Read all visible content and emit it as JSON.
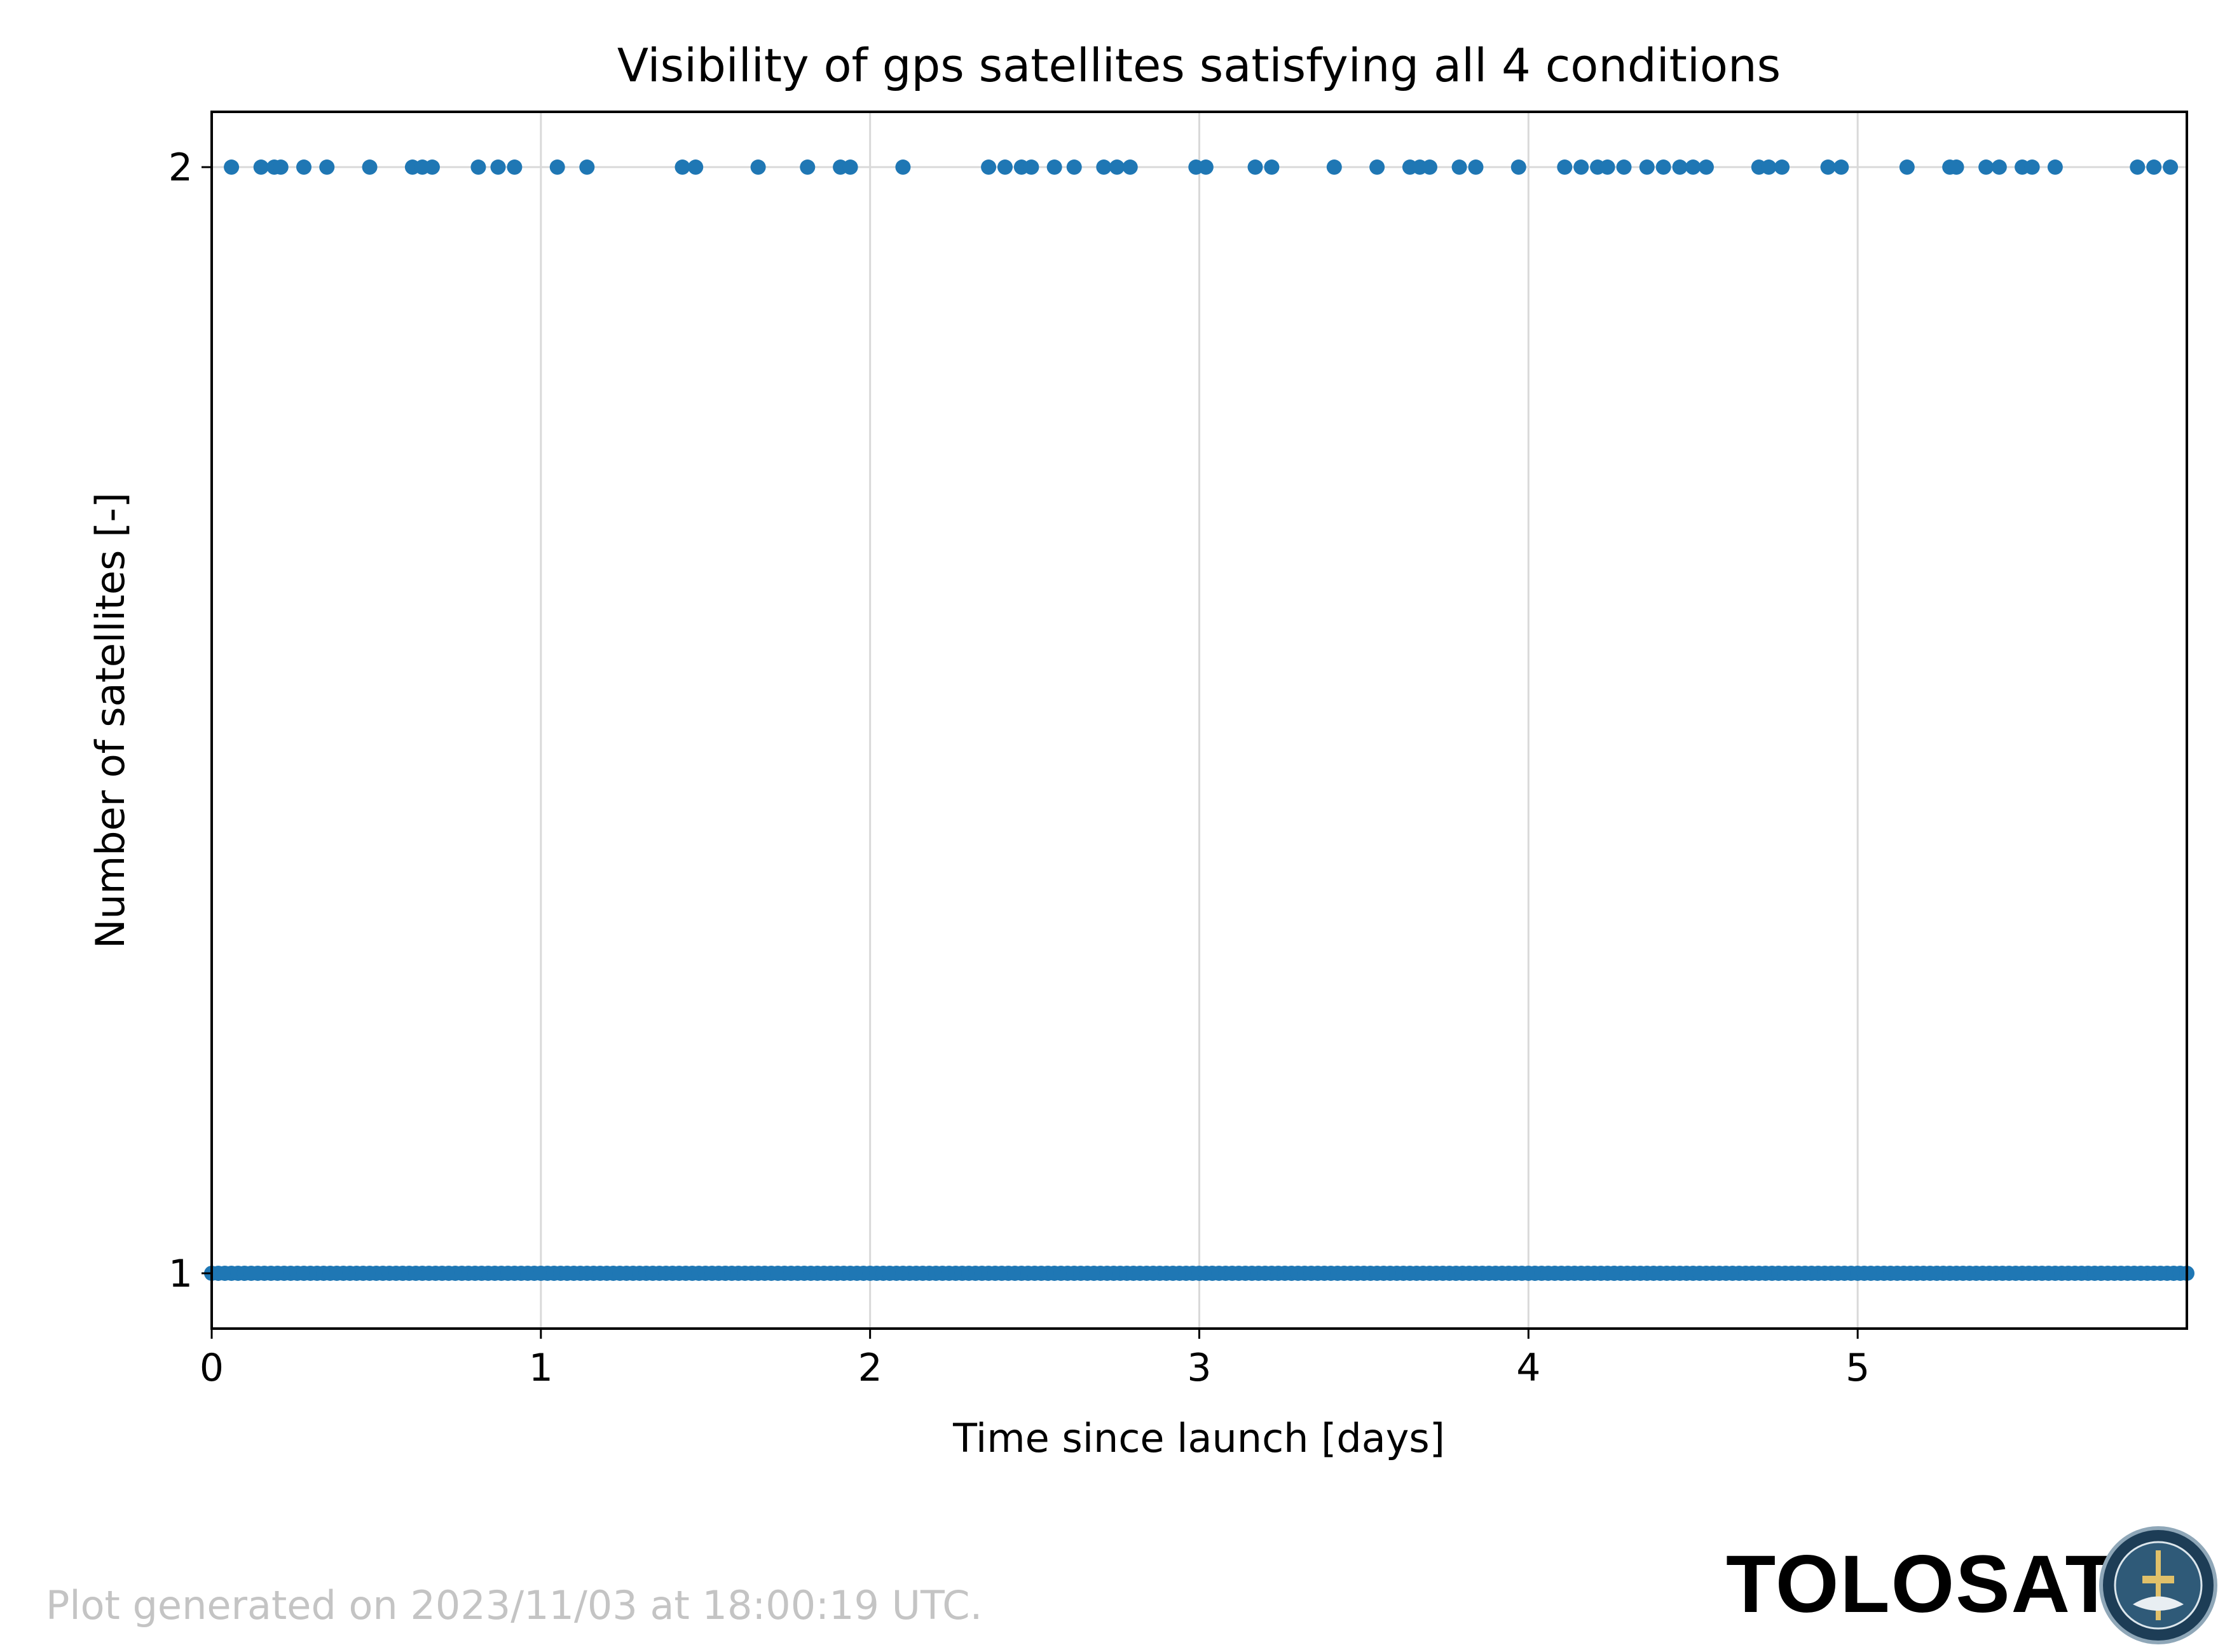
{
  "chart_data": {
    "type": "scatter",
    "title": "Visibility of gps satellites satisfying all 4 conditions",
    "xlabel": "Time since launch [days]",
    "ylabel": "Number of satellites [-]",
    "xlim": [
      0,
      6.0
    ],
    "ylim": [
      0.95,
      2.05
    ],
    "x_ticks": [
      "0",
      "1",
      "2",
      "3",
      "4",
      "5"
    ],
    "y_ticks": [
      "1",
      "2"
    ],
    "grid": true,
    "marker_color": "#1f77b4",
    "series": [
      {
        "values_y": 2,
        "x": [
          0.06,
          0.15,
          0.19,
          0.21,
          0.28,
          0.35,
          0.48,
          0.61,
          0.64,
          0.67,
          0.81,
          0.87,
          0.92,
          1.05,
          1.14,
          1.43,
          1.47,
          1.66,
          1.81,
          1.91,
          1.94,
          2.1,
          2.36,
          2.41,
          2.46,
          2.49,
          2.56,
          2.62,
          2.71,
          2.75,
          2.79,
          2.99,
          3.02,
          3.17,
          3.22,
          3.41,
          3.54,
          3.64,
          3.67,
          3.7,
          3.79,
          3.84,
          3.97,
          4.11,
          4.16,
          4.21,
          4.24,
          4.29,
          4.36,
          4.41,
          4.46,
          4.5,
          4.54,
          4.7,
          4.73,
          4.77,
          4.91,
          4.95,
          5.15,
          5.28,
          5.3,
          5.39,
          5.43,
          5.5,
          5.53,
          5.6,
          5.85,
          5.9,
          5.95
        ]
      },
      {
        "values_y": 1,
        "x_range": [
          0,
          6.0
        ],
        "note_dense": "continuous"
      }
    ]
  },
  "footer": {
    "generated": "Plot generated on 2023/11/03 at 18:00:19 UTC.",
    "brand": "TOLOSAT"
  }
}
